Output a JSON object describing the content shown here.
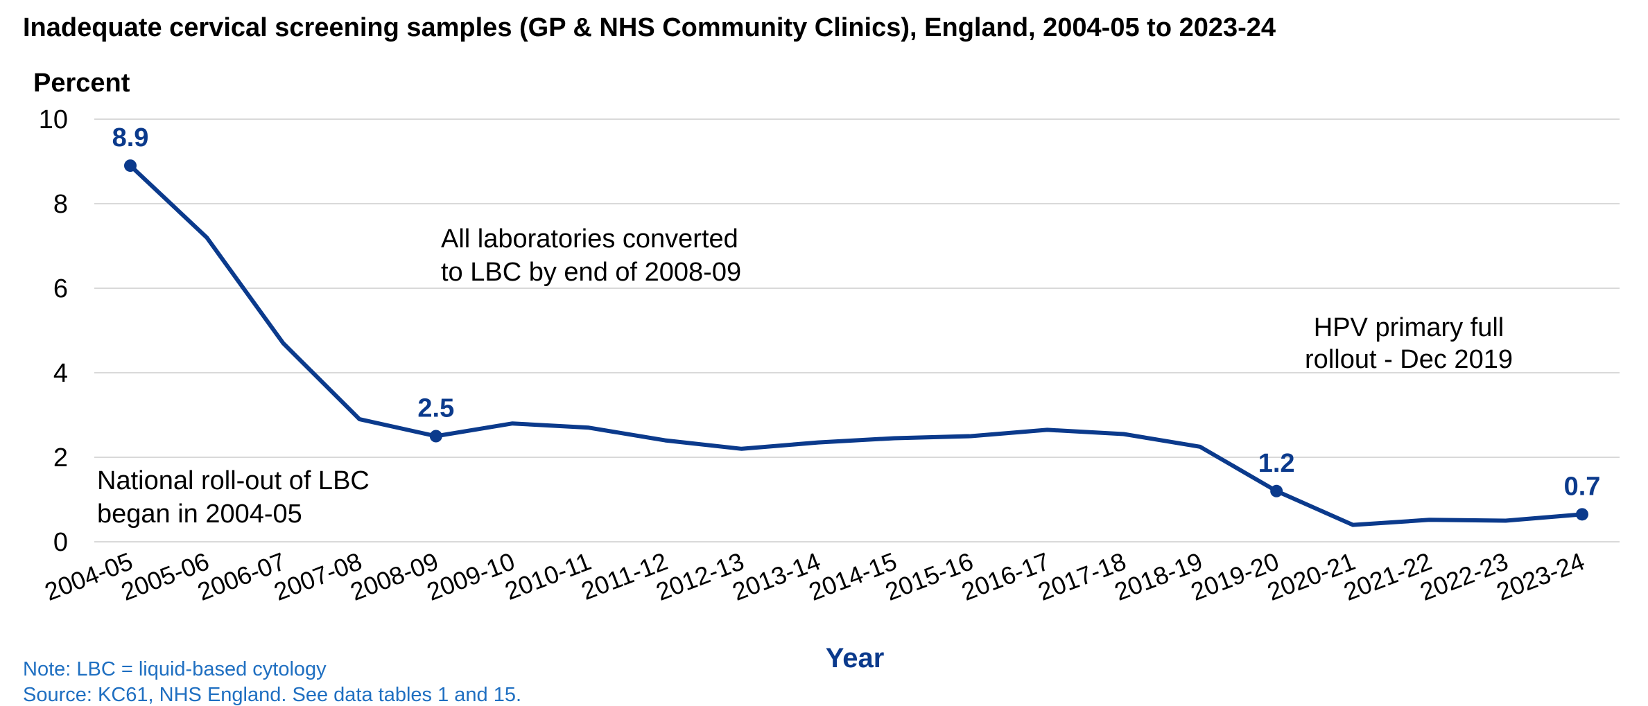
{
  "colors": {
    "series": "#0b3a8c",
    "note": "#1f6fc1",
    "xlabel": "#0b3a8c",
    "grid": "#d9d9d9"
  },
  "chart_data": {
    "type": "line",
    "title": "Inadequate cervical screening samples (GP & NHS Community Clinics), England, 2004-05 to 2023-24",
    "ylabel": "Percent",
    "xlabel": "Year",
    "ylim": [
      0,
      10
    ],
    "yticks": [
      "0",
      "2",
      "4",
      "6",
      "8",
      "10"
    ],
    "grid": true,
    "categories": [
      "2004-05",
      "2005-06",
      "2006-07",
      "2007-08",
      "2008-09",
      "2009-10",
      "2010-11",
      "2011-12",
      "2012-13",
      "2013-14",
      "2014-15",
      "2015-16",
      "2016-17",
      "2017-18",
      "2018-19",
      "2019-20",
      "2020-21",
      "2021-22",
      "2022-23",
      "2023-24"
    ],
    "series": [
      {
        "values": [
          8.9,
          7.2,
          4.7,
          2.9,
          2.5,
          2.8,
          2.7,
          2.4,
          2.2,
          2.35,
          2.45,
          2.5,
          2.65,
          2.55,
          2.25,
          1.2,
          0.4,
          0.52,
          0.5,
          0.65
        ]
      }
    ],
    "data_labels": [
      {
        "index": 0,
        "text": "8.9"
      },
      {
        "index": 4,
        "text": "2.5"
      },
      {
        "index": 15,
        "text": "1.2"
      },
      {
        "index": 19,
        "text": "0.7"
      }
    ],
    "annotations": {
      "lbc_rollout": [
        "National roll-out of LBC",
        "began in 2004-05"
      ],
      "lbc_converted": [
        "All laboratories converted",
        "to LBC by end of 2008-09"
      ],
      "hpv_rollout": [
        "HPV primary full",
        "rollout - Dec 2019"
      ]
    }
  },
  "notes": {
    "note": "Note: LBC = liquid-based cytology",
    "source": "Source: KC61, NHS England. See data tables 1 and 15."
  }
}
